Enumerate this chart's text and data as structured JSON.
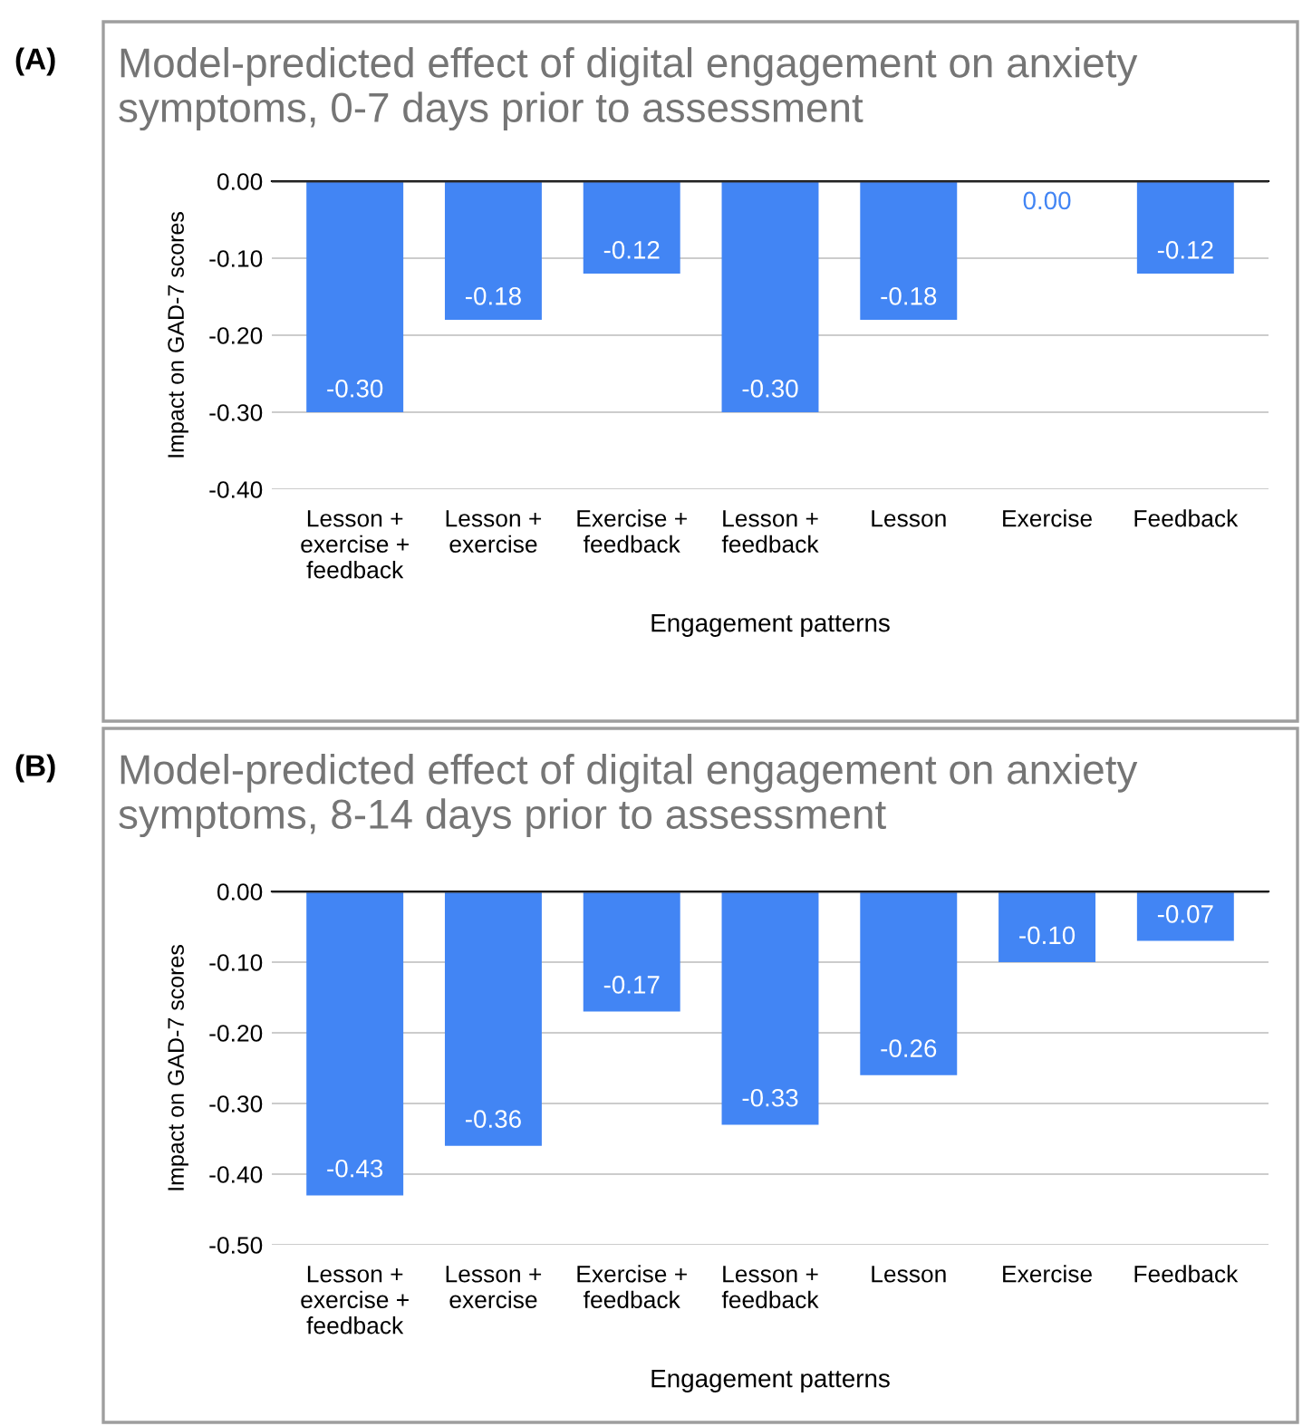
{
  "chart_data": [
    {
      "type": "bar",
      "title": "Model-predicted effect of digital engagement on anxiety symptoms, 0-7 days prior to assessment",
      "xlabel": "Engagement patterns",
      "ylabel": "Impact on GAD-7 scores",
      "annotations": [
        "(A)"
      ],
      "categories": [
        "Lesson +\nexercise +\nfeedback",
        "Lesson +\nexercise",
        "Exercise +\nfeedback",
        "Lesson +\nfeedback",
        "Lesson",
        "Exercise",
        "Feedback"
      ],
      "values": [
        -0.3,
        -0.18,
        -0.12,
        -0.3,
        -0.18,
        0.0,
        -0.12
      ],
      "color": "#4285f4",
      "value_labels": [
        "-0.30",
        "-0.18",
        "-0.12",
        "-0.30",
        "-0.18",
        "0.00",
        "-0.12"
      ],
      "ylim": [
        -0.4,
        0
      ],
      "yticks": [
        {
          "value": 0,
          "label": "0.00"
        },
        {
          "value": -0.1,
          "label": "-0.10"
        },
        {
          "value": -0.2,
          "label": "-0.20"
        },
        {
          "value": -0.3,
          "label": "-0.30"
        },
        {
          "value": -0.4,
          "label": "-0.40"
        }
      ],
      "grid": "y"
    },
    {
      "type": "bar",
      "title": "Model-predicted effect of digital engagement on anxiety symptoms, 8-14 days prior to assessment",
      "xlabel": "Engagement patterns",
      "ylabel": "Impact on GAD-7 scores",
      "annotations": [
        "(B)"
      ],
      "categories": [
        "Lesson +\nexercise +\nfeedback",
        "Lesson +\nexercise",
        "Exercise +\nfeedback",
        "Lesson +\nfeedback",
        "Lesson",
        "Exercise",
        "Feedback"
      ],
      "values": [
        -0.43,
        -0.36,
        -0.17,
        -0.33,
        -0.26,
        -0.1,
        -0.07
      ],
      "color": "#4285f4",
      "value_labels": [
        "-0.43",
        "-0.36",
        "-0.17",
        "-0.33",
        "-0.26",
        "-0.10",
        "-0.07"
      ],
      "ylim": [
        -0.5,
        0
      ],
      "yticks": [
        {
          "value": 0,
          "label": "0.00"
        },
        {
          "value": -0.1,
          "label": "-0.10"
        },
        {
          "value": -0.2,
          "label": "-0.20"
        },
        {
          "value": -0.3,
          "label": "-0.30"
        },
        {
          "value": -0.4,
          "label": "-0.40"
        },
        {
          "value": -0.5,
          "label": "-0.50"
        }
      ],
      "grid": "y"
    }
  ]
}
